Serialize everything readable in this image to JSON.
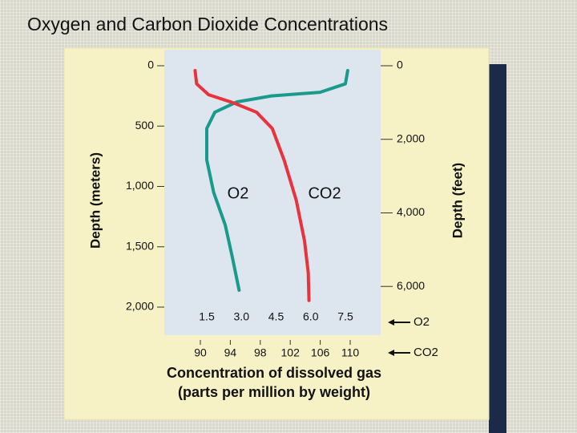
{
  "chart_data": {
    "type": "line",
    "title": "Oxygen and Carbon Dioxide Concentrations",
    "ylabel": "Depth (meters)",
    "y2label": "Depth (feet)",
    "xlabel": [
      "Concentration of dissolved gas",
      "(parts per million by weight)"
    ],
    "ylim": [
      0,
      2000
    ],
    "yticks": [
      0,
      500,
      {
        "value": 1000,
        "label": "1,000"
      },
      {
        "value": 1500,
        "label": "1,500"
      },
      {
        "value": 2000,
        "label": "2,000"
      }
    ],
    "y2lim": [
      0,
      6562
    ],
    "y2ticks": [
      0,
      {
        "value": 2000,
        "label": "2,000"
      },
      {
        "value": 4000,
        "label": "4,000"
      },
      {
        "value": 6000,
        "label": "6,000"
      }
    ],
    "xlim": [
      1.5,
      7.5
    ],
    "xticks": [
      1.5,
      {
        "value": 3.0,
        "label": "3.0"
      },
      4.5,
      {
        "value": 6.0,
        "label": "6.0"
      },
      7.5
    ],
    "x2lim": [
      90,
      110
    ],
    "x2ticks": [
      90,
      94,
      98,
      102,
      106,
      110
    ],
    "series": [
      {
        "name": "O2",
        "color": "#1a9a8c",
        "x": [
          7.6,
          7.5,
          6.4,
          4.3,
          2.8,
          1.85,
          1.5,
          1.5,
          1.8,
          2.3,
          2.6,
          2.9
        ],
        "values": [
          40,
          150,
          220,
          250,
          300,
          385,
          520,
          780,
          1050,
          1320,
          1580,
          1860
        ]
      },
      {
        "name": "CO2",
        "color": "#e8323c",
        "axis": "x2",
        "x": [
          89.3,
          89.5,
          91.1,
          94.3,
          97.5,
          99.6,
          101.2,
          102.8,
          103.9,
          104.4,
          104.5
        ],
        "values": [
          40,
          150,
          240,
          305,
          385,
          520,
          785,
          1115,
          1450,
          1715,
          1945
        ]
      }
    ]
  }
}
